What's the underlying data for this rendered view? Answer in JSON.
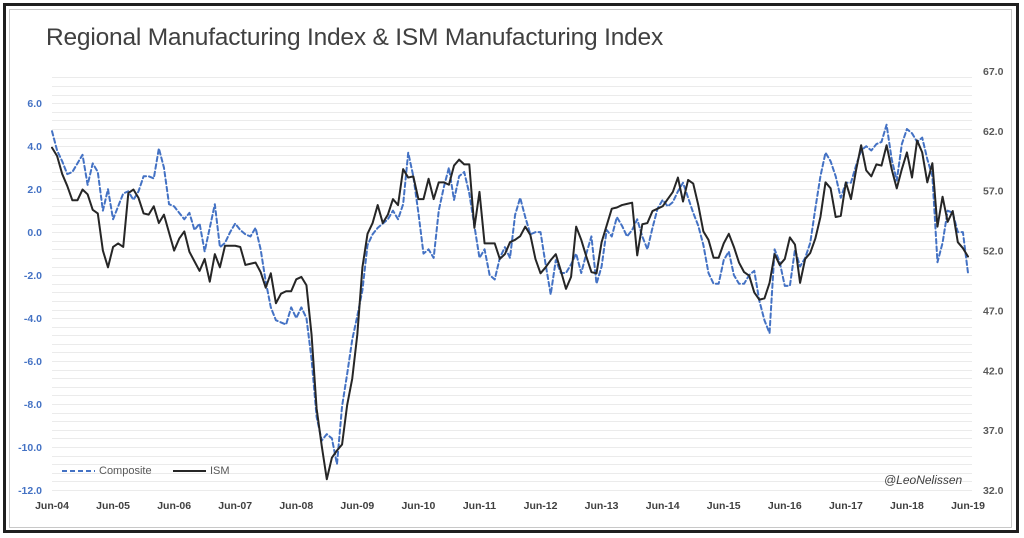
{
  "chart_data": {
    "type": "line",
    "title": "Regional Manufacturing Index & ISM Manufacturing Index",
    "xlabel": "",
    "ylabel": "",
    "x_start": "Jun-04",
    "x_step": "monthly",
    "x_ticks": [
      "Jun-04",
      "Jun-05",
      "Jun-06",
      "Jun-07",
      "Jun-08",
      "Jun-09",
      "Jun-10",
      "Jun-11",
      "Jun-12",
      "Jun-13",
      "Jun-14",
      "Jun-15",
      "Jun-16",
      "Jun-17",
      "Jun-18",
      "Jun-19"
    ],
    "y_left": {
      "range": [
        -12,
        7.5
      ],
      "ticks": [
        "6.0",
        "4.0",
        "2.0",
        "0.0",
        "-2.0",
        "-4.0",
        "-6.0",
        "-8.0",
        "-10.0",
        "-12.0"
      ],
      "color": "#4472C4"
    },
    "y_right": {
      "range": [
        32,
        67
      ],
      "ticks": [
        "67.0",
        "62.0",
        "57.0",
        "52.0",
        "47.0",
        "42.0",
        "37.0",
        "32.0"
      ],
      "color": "#595959"
    },
    "grid": true,
    "grid_step": 0.4,
    "legend": {
      "position": "bottom-left"
    },
    "annotation": "@LeoNelissen",
    "series": [
      {
        "name": "Composite",
        "axis": "left",
        "style": "dashed",
        "color": "#4472C4",
        "values": [
          4.7,
          3.8,
          3.3,
          2.7,
          2.8,
          3.2,
          3.6,
          2.2,
          3.2,
          2.8,
          1.0,
          2.0,
          0.6,
          1.2,
          1.8,
          1.9,
          1.5,
          1.9,
          2.6,
          2.6,
          2.5,
          3.9,
          3.0,
          1.3,
          1.2,
          0.9,
          0.6,
          0.9,
          0.1,
          0.4,
          -0.9,
          0.2,
          1.3,
          -0.7,
          -0.5,
          0.0,
          0.4,
          0.1,
          -0.1,
          -0.2,
          0.2,
          -0.8,
          -2.3,
          -3.5,
          -4.1,
          -4.2,
          -4.3,
          -3.5,
          -4.0,
          -3.5,
          -4.0,
          -5.9,
          -8.6,
          -9.7,
          -9.4,
          -9.6,
          -10.8,
          -8.1,
          -6.6,
          -5.0,
          -3.9,
          -2.7,
          -0.6,
          -0.1,
          0.2,
          0.4,
          0.6,
          1.0,
          0.6,
          1.3,
          3.7,
          2.6,
          0.9,
          -1.0,
          -0.8,
          -1.2,
          1.0,
          2.1,
          3.0,
          1.5,
          2.6,
          2.8,
          1.8,
          0.3,
          -1.2,
          -0.8,
          -2.0,
          -2.2,
          -1.2,
          -0.7,
          -1.2,
          0.8,
          1.6,
          0.7,
          -0.1,
          0.0,
          0.0,
          -1.5,
          -2.9,
          -1.3,
          -1.9,
          -1.9,
          -1.5,
          -1.0,
          -1.9,
          -1.0,
          -0.2,
          -2.4,
          -1.6,
          0.1,
          -0.2,
          0.7,
          0.3,
          -0.2,
          0.1,
          0.6,
          -0.2,
          -0.8,
          0.2,
          1.1,
          1.5,
          1.2,
          1.4,
          1.9,
          2.3,
          1.6,
          0.9,
          0.3,
          -0.6,
          -1.9,
          -2.4,
          -2.4,
          -1.3,
          -0.9,
          -2.0,
          -2.4,
          -2.4,
          -2.0,
          -1.8,
          -3.2,
          -4.1,
          -4.7,
          -0.8,
          -1.4,
          -2.5,
          -2.5,
          -0.8,
          -1.6,
          -1.2,
          -0.5,
          1.1,
          2.6,
          3.7,
          3.3,
          2.6,
          1.6,
          2.3,
          2.3,
          3.1,
          3.8,
          4.0,
          3.8,
          4.1,
          4.2,
          5.0,
          3.4,
          2.4,
          4.1,
          4.8,
          4.6,
          4.2,
          4.4,
          3.4,
          2.6,
          -1.4,
          -0.5,
          1.0,
          0.9,
          0.0,
          0.0,
          -1.9
        ]
      },
      {
        "name": "ISM",
        "axis": "right",
        "style": "solid",
        "color": "#262626",
        "values": [
          60.6,
          59.9,
          58.4,
          57.4,
          56.2,
          56.2,
          57.1,
          56.7,
          55.4,
          55.1,
          52.0,
          50.6,
          52.3,
          52.6,
          52.3,
          56.8,
          57.1,
          56.4,
          55.1,
          55.0,
          55.7,
          54.3,
          55.0,
          53.5,
          52.0,
          53.0,
          53.6,
          51.9,
          51.1,
          50.3,
          51.3,
          49.4,
          51.7,
          50.6,
          52.4,
          52.4,
          52.4,
          52.3,
          50.8,
          50.9,
          51.0,
          50.2,
          48.9,
          50.1,
          47.6,
          48.4,
          48.6,
          48.6,
          49.6,
          49.8,
          49.1,
          45.0,
          38.8,
          35.7,
          32.9,
          34.7,
          35.3,
          35.8,
          39.1,
          41.3,
          45.0,
          50.6,
          53.4,
          54.3,
          55.8,
          54.3,
          55.0,
          56.3,
          55.8,
          58.8,
          58.1,
          58.2,
          56.3,
          56.3,
          58.0,
          56.3,
          57.7,
          57.7,
          57.5,
          59.1,
          59.6,
          59.2,
          59.2,
          53.9,
          56.9,
          52.6,
          52.6,
          52.6,
          51.3,
          51.7,
          52.7,
          52.9,
          53.2,
          54.0,
          53.3,
          51.3,
          50.1,
          50.6,
          51.2,
          51.7,
          50.3,
          48.8,
          49.8,
          54.0,
          52.9,
          51.5,
          50.2,
          50.1,
          52.7,
          54.1,
          55.5,
          55.6,
          55.8,
          55.9,
          56.0,
          51.6,
          54.2,
          54.3,
          55.3,
          55.5,
          55.7,
          56.3,
          56.9,
          58.1,
          56.1,
          57.9,
          57.6,
          55.8,
          53.6,
          52.9,
          51.4,
          51.4,
          52.6,
          53.4,
          52.3,
          51.0,
          50.2,
          49.9,
          48.5,
          47.9,
          48.0,
          49.3,
          51.7,
          50.8,
          51.3,
          53.1,
          52.5,
          49.3,
          51.3,
          51.8,
          53.0,
          54.8,
          57.7,
          57.2,
          54.8,
          54.9,
          57.7,
          56.3,
          58.7,
          60.8,
          58.7,
          58.2,
          59.2,
          59.1,
          60.8,
          58.8,
          57.2,
          58.8,
          60.2,
          58.1,
          61.2,
          60.2,
          57.7,
          59.3,
          54.0,
          56.5,
          54.4,
          55.3,
          52.7,
          52.2,
          51.5
        ]
      }
    ]
  }
}
